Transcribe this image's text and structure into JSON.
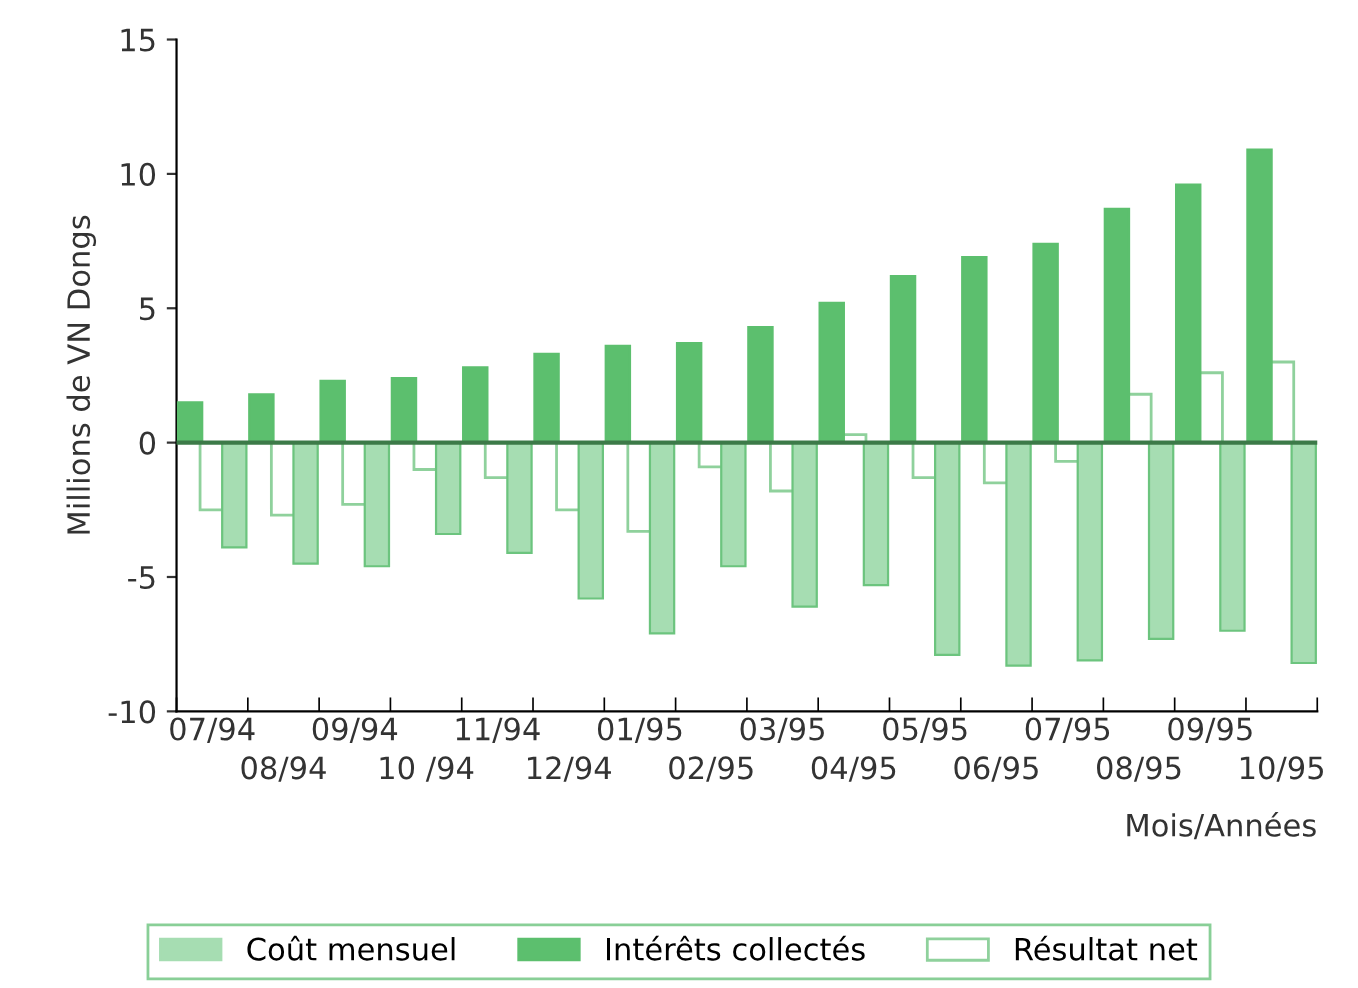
{
  "chart_data": {
    "type": "bar",
    "ylabel": "Millions de VN Dongs",
    "xlabel": "Mois/Années",
    "categories": [
      "07/94",
      "08/94",
      "09/94",
      "10 /94",
      "11/94",
      "12/94",
      "01/95",
      "02/95",
      "03/95",
      "04/95",
      "05/95",
      "06/95",
      "07/95",
      "08/95",
      "09/95",
      "10/95"
    ],
    "series": [
      {
        "name": "Coût mensuel",
        "color": "#a6ddb2",
        "values": [
          -3.9,
          -4.5,
          -4.6,
          -3.4,
          -4.1,
          -5.8,
          -7.1,
          -4.6,
          -6.1,
          -5.3,
          -7.9,
          -8.3,
          -8.1,
          -7.3,
          -7.0,
          -8.2
        ]
      },
      {
        "name": "Intérêts collectés",
        "color": "#5cbf6e",
        "values": [
          1.5,
          1.8,
          2.3,
          2.4,
          2.8,
          3.3,
          3.6,
          3.7,
          4.3,
          5.2,
          6.2,
          6.9,
          7.4,
          8.7,
          9.6,
          10.9
        ]
      },
      {
        "name": "Résultat net",
        "color": "#8fd19c",
        "values": [
          -2.5,
          -2.7,
          -2.3,
          -1.0,
          -1.3,
          -2.5,
          -3.3,
          -0.9,
          -1.8,
          0.3,
          -1.3,
          -1.5,
          -0.7,
          1.8,
          2.6,
          3.0
        ]
      }
    ],
    "ylim": [
      -10,
      15
    ],
    "yticks": [
      -10,
      -5,
      0,
      5,
      10,
      15
    ],
    "ref_lines": [
      {
        "axis": "y",
        "value": 0,
        "color": "#3c7a48"
      }
    ],
    "grid": false,
    "legend": "bottom"
  }
}
